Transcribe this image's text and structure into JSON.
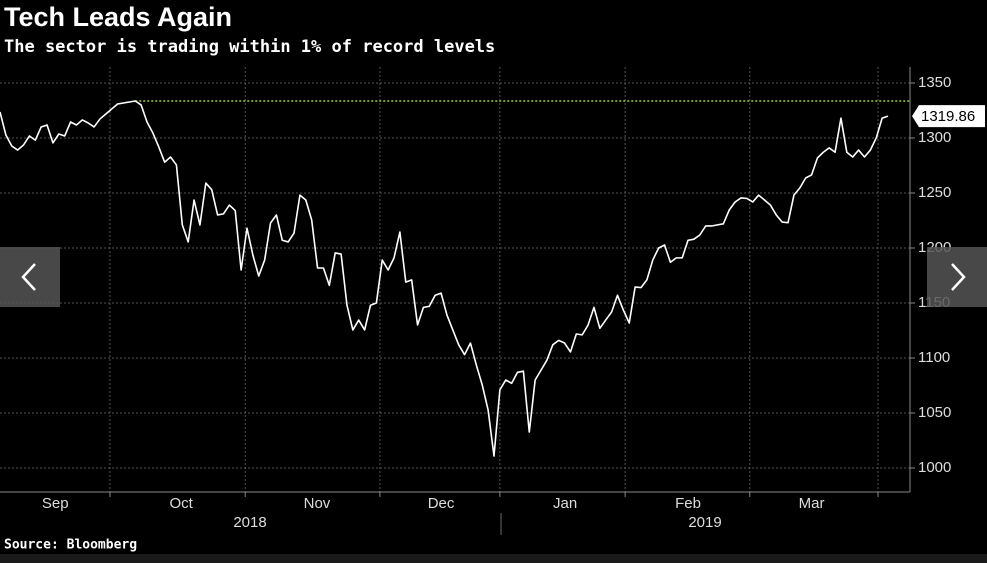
{
  "chart_data": {
    "type": "line",
    "title": "Tech Leads Again",
    "subtitle": "The sector is trading within 1% of record levels",
    "source": "Source: Bloomberg",
    "series": [
      {
        "color": "#ffffff",
        "values": [
          1323.6,
          1302.7,
          1292.7,
          1289,
          1293.6,
          1301.8,
          1298,
          1310,
          1311.8,
          1295.5,
          1303.6,
          1301.8,
          1314.5,
          1311.8,
          1316.4,
          1313.6,
          1310,
          1317.3,
          1321.8,
          1326.4,
          1330.9,
          1331.8,
          1332.7,
          1333.6,
          1330,
          1314.5,
          1304.5,
          1291.8,
          1278,
          1282.7,
          1275.5,
          1221,
          1205.5,
          1243.6,
          1221,
          1259,
          1253,
          1230,
          1231,
          1239,
          1234,
          1180,
          1218,
          1193.6,
          1174.5,
          1189,
          1222.7,
          1230,
          1207,
          1205.5,
          1213.6,
          1248,
          1243.6,
          1225.5,
          1181.8,
          1181.8,
          1166,
          1195.5,
          1194.5,
          1148,
          1125.5,
          1134.5,
          1125.5,
          1148,
          1150,
          1189,
          1180,
          1191,
          1214.5,
          1169,
          1171,
          1130,
          1146,
          1147,
          1157,
          1159,
          1139,
          1125.5,
          1112,
          1103,
          1113.6,
          1093.6,
          1075.5,
          1052.7,
          1010.9,
          1071,
          1080,
          1077,
          1087,
          1088,
          1032.7,
          1080,
          1089,
          1098,
          1112,
          1116,
          1113.6,
          1105.5,
          1121.8,
          1121,
          1130,
          1146,
          1127,
          1134.5,
          1141.8,
          1157,
          1143.6,
          1131.8,
          1164.5,
          1164,
          1171,
          1189,
          1200,
          1202.7,
          1187,
          1191,
          1191,
          1207,
          1208,
          1211.8,
          1220,
          1220,
          1221,
          1222,
          1234.5,
          1241.8,
          1245.5,
          1245,
          1241.8,
          1248,
          1243.6,
          1239,
          1230,
          1223.6,
          1223,
          1248,
          1254.5,
          1263.6,
          1266.4,
          1281.8,
          1287,
          1291,
          1287,
          1318,
          1287,
          1282.7,
          1289,
          1282.7,
          1289,
          1300,
          1318,
          1319.86
        ]
      }
    ],
    "record_line": {
      "value": 1333.6,
      "color": "#9acd32"
    },
    "xlim": [
      0,
      151
    ],
    "xticks": [
      {
        "value": 9.4,
        "label": "Sep"
      },
      {
        "value": 30.8,
        "label": "Oct"
      },
      {
        "value": 53.9,
        "label": "Nov"
      },
      {
        "value": 75,
        "label": "Dec"
      },
      {
        "value": 96.1,
        "label": "Jan"
      },
      {
        "value": 117,
        "label": "Feb"
      },
      {
        "value": 138,
        "label": "Mar"
      }
    ],
    "xgrid": [
      18.7,
      41.7,
      64.6,
      85,
      106.3,
      127.5,
      149.3
    ],
    "year_labels": [
      "2018",
      "2019"
    ],
    "ylim": [
      978.2,
      1364.5
    ],
    "yticks": [
      1000,
      1050,
      1100,
      1150,
      1200,
      1250,
      1300,
      1350
    ],
    "grid": true
  }
}
